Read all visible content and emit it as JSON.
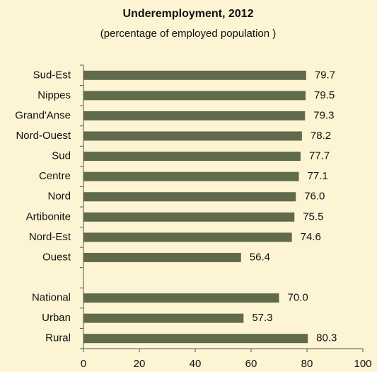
{
  "chart_data": {
    "type": "bar",
    "orientation": "horizontal",
    "title": "Underemployment, 2012",
    "subtitle": "(percentage of employed population )",
    "categories": [
      "Sud-Est",
      "Nippes",
      "Grand'Anse",
      "Nord-Ouest",
      "Sud",
      "Centre",
      "Nord",
      "Artibonite",
      "Nord-Est",
      "Ouest",
      null,
      "National",
      "Urban",
      "Rural"
    ],
    "values": [
      79.7,
      79.5,
      79.3,
      78.2,
      77.7,
      77.1,
      76.0,
      75.5,
      74.6,
      56.4,
      null,
      70.0,
      57.3,
      80.3
    ],
    "value_labels": [
      "79.7",
      "79.5",
      "79.3",
      "78.2",
      "77.7",
      "77.1",
      "76.0",
      "75.5",
      "74.6",
      "56.4",
      null,
      "70.0",
      "57.3",
      "80.3"
    ],
    "color": "#5f6b4b",
    "xlim": [
      0,
      100
    ],
    "xticks": [
      0,
      20,
      40,
      60,
      80,
      100
    ],
    "grid": false
  }
}
